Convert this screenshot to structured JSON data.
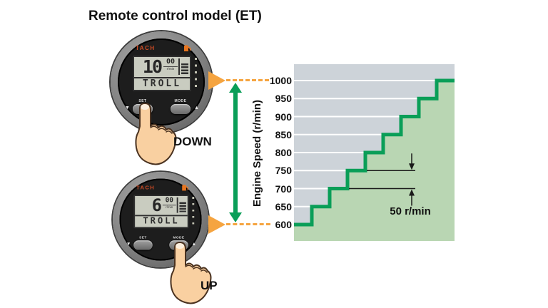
{
  "title": "Remote control model (ET)",
  "colors": {
    "green": "#0a9e58",
    "light_green": "#b9d6b3",
    "blue_gray": "#cdd3d9",
    "orange": "#f5a440",
    "tach_red": "#cf4b24",
    "lcd_bg": "#c9ccc0",
    "ink": "#1a1a1a"
  },
  "gauges": [
    {
      "brand": "TACH",
      "display": {
        "value": "10",
        "decimals": "00",
        "unit": "r/min",
        "mode": "TROLL"
      },
      "buttons": {
        "set": "SET",
        "mode": "MODE",
        "down_arrow": "▼",
        "up_arrow": "▲"
      },
      "action": "DOWN"
    },
    {
      "brand": "TACH",
      "display": {
        "value": "6",
        "decimals": "00",
        "unit": "r/min",
        "mode": "TROLL"
      },
      "buttons": {
        "set": "SET",
        "mode": "MODE",
        "down_arrow": "▼",
        "up_arrow": "▲"
      },
      "action": "UP"
    }
  ],
  "chart_data": {
    "type": "area",
    "title": "",
    "xlabel": "",
    "ylabel": "Engine Speed (r/min)",
    "ylim": [
      600,
      1000
    ],
    "yticks": [
      1000,
      950,
      900,
      850,
      800,
      750,
      700,
      650,
      600
    ],
    "values": [
      600,
      650,
      700,
      750,
      800,
      850,
      900,
      950,
      1000
    ],
    "step_size": 50,
    "annotation": "50 r/min",
    "grid": true,
    "legend": false,
    "marker_levels": [
      1000,
      600
    ]
  }
}
